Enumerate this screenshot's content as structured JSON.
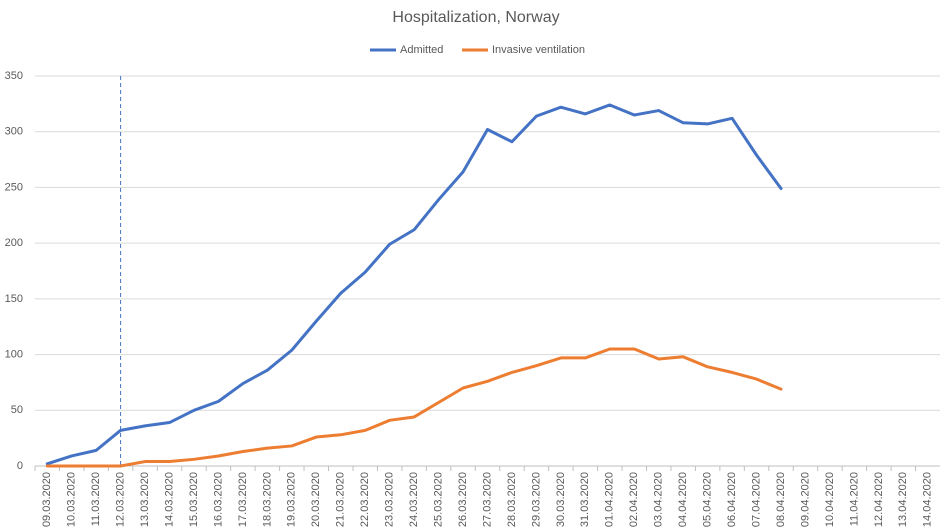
{
  "chart_data": {
    "type": "line",
    "title": "Hospitalization, Norway",
    "categories": [
      "09.03.2020",
      "10.03.2020",
      "11.03.2020",
      "12.03.2020",
      "13.03.2020",
      "14.03.2020",
      "15.03.2020",
      "16.03.2020",
      "17.03.2020",
      "18.03.2020",
      "19.03.2020",
      "20.03.2020",
      "21.03.2020",
      "22.03.2020",
      "23.03.2020",
      "24.03.2020",
      "25.03.2020",
      "26.03.2020",
      "27.03.2020",
      "28.03.2020",
      "29.03.2020",
      "30.03.2020",
      "31.03.2020",
      "01.04.2020",
      "02.04.2020",
      "03.04.2020",
      "04.04.2020",
      "05.04.2020",
      "06.04.2020",
      "07.04.2020",
      "08.04.2020",
      "09.04.2020",
      "10.04.2020",
      "11.04.2020",
      "12.04.2020",
      "13.04.2020",
      "14.04.2020"
    ],
    "series": [
      {
        "name": "Admitted",
        "color": "#4472c4",
        "values": [
          2,
          9,
          14,
          32,
          36,
          39,
          50,
          58,
          74,
          86,
          104,
          130,
          155,
          174,
          199,
          212,
          239,
          264,
          302,
          291,
          314,
          322,
          316,
          324,
          315,
          319,
          308,
          307,
          312,
          279,
          249,
          null,
          null,
          null,
          null,
          null,
          null
        ]
      },
      {
        "name": "Invasive ventilation",
        "color": "#ed7d31",
        "values": [
          0,
          0,
          0,
          0,
          4,
          4,
          6,
          9,
          13,
          16,
          18,
          26,
          28,
          32,
          41,
          44,
          57,
          70,
          76,
          84,
          90,
          97,
          97,
          105,
          105,
          96,
          98,
          89,
          84,
          78,
          69,
          null,
          null,
          null,
          null,
          null,
          null
        ]
      }
    ],
    "reference_line": "12.03.2020",
    "ylim": [
      0,
      350
    ],
    "yticks": [
      0,
      50,
      100,
      150,
      200,
      250,
      300,
      350
    ],
    "grid": true,
    "legend": "top"
  }
}
